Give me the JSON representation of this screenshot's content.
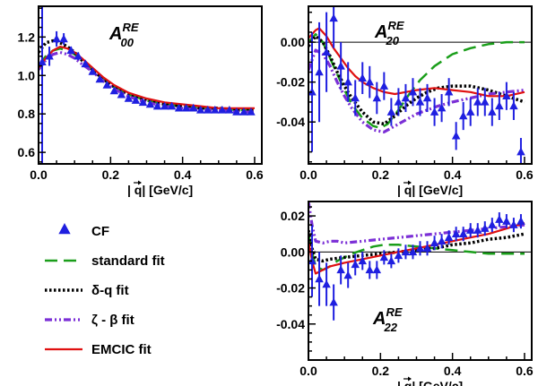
{
  "colors": {
    "cf": "#1f1fe0",
    "standard": "#1a9e1a",
    "delta_q": "#000000",
    "zeta_beta": "#7b2fd6",
    "emcic": "#e01010"
  },
  "legend": {
    "items": [
      {
        "key": "cf",
        "label": "CF",
        "style": "triangle"
      },
      {
        "key": "standard",
        "label": "standard fit",
        "style": "long-dash"
      },
      {
        "key": "delta_q",
        "label": "δ-q fit",
        "style": "dotted"
      },
      {
        "key": "zeta_beta",
        "label": "ζ - β fit",
        "style": "dash-dot"
      },
      {
        "key": "emcic",
        "label": "EMCIC fit",
        "style": "solid"
      }
    ]
  },
  "chart_data": [
    {
      "type": "line",
      "title_main": "A",
      "title_sup": "RE",
      "title_sub": "00",
      "xlabel": "|q| [GeV/c]",
      "xlim": [
        0,
        0.62
      ],
      "ylim": [
        0.54,
        1.36
      ],
      "xticks": [
        0.0,
        0.2,
        0.4,
        0.6
      ],
      "xtick_labels": [
        "0.0",
        "0.2",
        "0.4",
        "0.6"
      ],
      "yticks": [
        0.6,
        0.8,
        1.0,
        1.2
      ],
      "ytick_labels": [
        "0.6",
        "0.8",
        "1.0",
        "1.2"
      ],
      "zero_line": false,
      "cf": {
        "x": [
          0.01,
          0.03,
          0.05,
          0.07,
          0.09,
          0.11,
          0.13,
          0.15,
          0.17,
          0.19,
          0.21,
          0.23,
          0.25,
          0.27,
          0.29,
          0.31,
          0.33,
          0.35,
          0.37,
          0.39,
          0.41,
          0.43,
          0.45,
          0.47,
          0.49,
          0.51,
          0.53,
          0.55,
          0.57,
          0.59
        ],
        "y": [
          1.07,
          1.1,
          1.19,
          1.19,
          1.13,
          1.1,
          1.06,
          1.02,
          0.98,
          0.95,
          0.92,
          0.9,
          0.88,
          0.87,
          0.86,
          0.85,
          0.84,
          0.84,
          0.84,
          0.83,
          0.83,
          0.83,
          0.82,
          0.82,
          0.82,
          0.82,
          0.82,
          0.81,
          0.81,
          0.81
        ],
        "err": [
          0.6,
          0.05,
          0.04,
          0.03,
          0.02,
          0.02,
          0.015,
          0.01,
          0.01,
          0.01,
          0.01,
          0.01,
          0.01,
          0.01,
          0.01,
          0.01,
          0.01,
          0.01,
          0.01,
          0.01,
          0.01,
          0.01,
          0.01,
          0.01,
          0.01,
          0.01,
          0.01,
          0.01,
          0.01,
          0.01
        ]
      },
      "series": [
        {
          "key": "standard",
          "x": [
            0,
            0.02,
            0.04,
            0.06,
            0.08,
            0.1,
            0.12,
            0.15,
            0.18,
            0.21,
            0.25,
            0.3,
            0.35,
            0.4,
            0.45,
            0.5,
            0.55,
            0.6
          ],
          "y": [
            1.05,
            1.1,
            1.13,
            1.14,
            1.13,
            1.11,
            1.08,
            1.03,
            0.98,
            0.94,
            0.9,
            0.87,
            0.85,
            0.84,
            0.83,
            0.83,
            0.82,
            0.82
          ]
        },
        {
          "key": "delta_q",
          "x": [
            0,
            0.02,
            0.04,
            0.06,
            0.08,
            0.1,
            0.12,
            0.15,
            0.18,
            0.21,
            0.25,
            0.3,
            0.35,
            0.4,
            0.45,
            0.5,
            0.55,
            0.6
          ],
          "y": [
            1.12,
            1.17,
            1.18,
            1.17,
            1.15,
            1.12,
            1.08,
            1.03,
            0.98,
            0.94,
            0.9,
            0.87,
            0.85,
            0.84,
            0.83,
            0.83,
            0.82,
            0.82
          ]
        },
        {
          "key": "zeta_beta",
          "x": [
            0,
            0.02,
            0.04,
            0.06,
            0.08,
            0.1,
            0.12,
            0.15,
            0.18,
            0.21,
            0.25,
            0.3,
            0.35,
            0.4,
            0.45,
            0.5,
            0.55,
            0.6
          ],
          "y": [
            1.03,
            1.08,
            1.11,
            1.12,
            1.11,
            1.09,
            1.06,
            1.02,
            0.97,
            0.93,
            0.89,
            0.86,
            0.84,
            0.83,
            0.82,
            0.82,
            0.81,
            0.81
          ]
        },
        {
          "key": "emcic",
          "x": [
            0,
            0.02,
            0.04,
            0.06,
            0.08,
            0.1,
            0.12,
            0.15,
            0.18,
            0.21,
            0.25,
            0.3,
            0.35,
            0.4,
            0.45,
            0.5,
            0.55,
            0.6
          ],
          "y": [
            1.04,
            1.09,
            1.13,
            1.15,
            1.14,
            1.12,
            1.09,
            1.04,
            0.99,
            0.95,
            0.91,
            0.88,
            0.86,
            0.85,
            0.84,
            0.83,
            0.83,
            0.83
          ]
        }
      ]
    },
    {
      "type": "line",
      "title_main": "A",
      "title_sup": "RE",
      "title_sub": "20",
      "xlabel": "|q| [GeV/c]",
      "xlim": [
        0,
        0.62
      ],
      "ylim": [
        -0.061,
        0.018
      ],
      "xticks": [
        0.0,
        0.2,
        0.4,
        0.6
      ],
      "xtick_labels": [
        "0.0",
        "0.2",
        "0.4",
        "0.6"
      ],
      "yticks": [
        0.0,
        -0.02,
        -0.04
      ],
      "ytick_labels": [
        "0.00",
        "-0.02",
        "-0.04"
      ],
      "zero_line": true,
      "cf": {
        "x": [
          0.01,
          0.03,
          0.05,
          0.07,
          0.09,
          0.11,
          0.13,
          0.15,
          0.17,
          0.19,
          0.21,
          0.23,
          0.25,
          0.27,
          0.29,
          0.31,
          0.33,
          0.35,
          0.37,
          0.39,
          0.41,
          0.43,
          0.45,
          0.47,
          0.49,
          0.51,
          0.53,
          0.55,
          0.57,
          0.59
        ],
        "y": [
          -0.025,
          -0.015,
          -0.005,
          0.012,
          -0.012,
          -0.02,
          -0.028,
          -0.018,
          -0.02,
          -0.028,
          -0.022,
          -0.035,
          -0.03,
          -0.028,
          -0.025,
          -0.03,
          -0.028,
          -0.035,
          -0.033,
          -0.025,
          -0.047,
          -0.037,
          -0.035,
          -0.03,
          -0.03,
          -0.035,
          -0.032,
          -0.027,
          -0.032,
          -0.055
        ],
        "err": [
          0.03,
          0.025,
          0.02,
          0.015,
          0.012,
          0.01,
          0.009,
          0.008,
          0.008,
          0.008,
          0.007,
          0.007,
          0.007,
          0.007,
          0.007,
          0.007,
          0.007,
          0.007,
          0.007,
          0.007,
          0.007,
          0.007,
          0.007,
          0.007,
          0.007,
          0.007,
          0.007,
          0.007,
          0.007,
          0.007
        ]
      },
      "series": [
        {
          "key": "standard",
          "x": [
            0,
            0.02,
            0.04,
            0.06,
            0.08,
            0.1,
            0.12,
            0.15,
            0.18,
            0.2,
            0.22,
            0.25,
            0.28,
            0.31,
            0.35,
            0.4,
            0.45,
            0.5,
            0.55,
            0.6
          ],
          "y": [
            0.0,
            0.004,
            0.0,
            -0.008,
            -0.016,
            -0.024,
            -0.031,
            -0.038,
            -0.042,
            -0.043,
            -0.041,
            -0.034,
            -0.026,
            -0.019,
            -0.012,
            -0.006,
            -0.003,
            -0.001,
            0.0,
            0.0
          ]
        },
        {
          "key": "delta_q",
          "x": [
            0,
            0.02,
            0.04,
            0.06,
            0.08,
            0.1,
            0.12,
            0.15,
            0.18,
            0.21,
            0.24,
            0.27,
            0.3,
            0.33,
            0.36,
            0.4,
            0.45,
            0.5,
            0.55,
            0.6
          ],
          "y": [
            -0.002,
            0.003,
            0.0,
            -0.007,
            -0.015,
            -0.022,
            -0.028,
            -0.035,
            -0.04,
            -0.041,
            -0.037,
            -0.032,
            -0.028,
            -0.025,
            -0.023,
            -0.022,
            -0.022,
            -0.024,
            -0.027,
            -0.03
          ]
        },
        {
          "key": "zeta_beta",
          "x": [
            0,
            0.02,
            0.04,
            0.06,
            0.08,
            0.1,
            0.12,
            0.15,
            0.18,
            0.21,
            0.24,
            0.27,
            0.3,
            0.33,
            0.36,
            0.4,
            0.45,
            0.5,
            0.55,
            0.6
          ],
          "y": [
            -0.014,
            -0.004,
            -0.006,
            -0.012,
            -0.02,
            -0.027,
            -0.033,
            -0.04,
            -0.044,
            -0.045,
            -0.042,
            -0.039,
            -0.036,
            -0.034,
            -0.032,
            -0.03,
            -0.028,
            -0.026,
            -0.025,
            -0.024
          ]
        },
        {
          "key": "emcic",
          "x": [
            0,
            0.02,
            0.03,
            0.05,
            0.07,
            0.09,
            0.11,
            0.13,
            0.15,
            0.18,
            0.21,
            0.24,
            0.27,
            0.3,
            0.35,
            0.4,
            0.45,
            0.5,
            0.55,
            0.6
          ],
          "y": [
            0.002,
            0.006,
            0.007,
            0.003,
            -0.003,
            -0.008,
            -0.013,
            -0.017,
            -0.02,
            -0.023,
            -0.025,
            -0.026,
            -0.025,
            -0.024,
            -0.023,
            -0.024,
            -0.025,
            -0.027,
            -0.027,
            -0.025
          ]
        }
      ]
    },
    {
      "type": "line",
      "title_main": "A",
      "title_sup": "RE",
      "title_sub": "22",
      "xlabel": "|q| [GeV/c]",
      "xlim": [
        0,
        0.62
      ],
      "ylim": [
        -0.06,
        0.028
      ],
      "xticks": [
        0.0,
        0.2,
        0.4,
        0.6
      ],
      "xtick_labels": [
        "0.0",
        "0.2",
        "0.4",
        "0.6"
      ],
      "yticks": [
        0.02,
        0.0,
        -0.02,
        -0.04
      ],
      "ytick_labels": [
        "0.02",
        "0.00",
        "-0.02",
        "-0.04"
      ],
      "zero_line": true,
      "cf": {
        "x": [
          0.01,
          0.03,
          0.05,
          0.07,
          0.09,
          0.11,
          0.13,
          0.15,
          0.17,
          0.19,
          0.21,
          0.23,
          0.25,
          0.27,
          0.29,
          0.31,
          0.33,
          0.35,
          0.37,
          0.39,
          0.41,
          0.43,
          0.45,
          0.47,
          0.49,
          0.51,
          0.53,
          0.55,
          0.57,
          0.59
        ],
        "y": [
          -0.005,
          -0.015,
          -0.018,
          -0.028,
          -0.01,
          -0.013,
          -0.007,
          -0.005,
          -0.01,
          -0.01,
          -0.003,
          -0.005,
          -0.002,
          0.0,
          0.0,
          0.002,
          0.002,
          0.005,
          0.006,
          0.008,
          0.01,
          0.01,
          0.012,
          0.012,
          0.013,
          0.015,
          0.018,
          0.017,
          0.015,
          0.017
        ],
        "err": [
          0.02,
          0.015,
          0.012,
          0.01,
          0.008,
          0.007,
          0.006,
          0.005,
          0.005,
          0.005,
          0.004,
          0.004,
          0.004,
          0.004,
          0.004,
          0.004,
          0.004,
          0.004,
          0.004,
          0.004,
          0.004,
          0.004,
          0.004,
          0.004,
          0.004,
          0.004,
          0.004,
          0.004,
          0.004,
          0.004
        ]
      },
      "series": [
        {
          "key": "standard",
          "x": [
            0,
            0.01,
            0.02,
            0.04,
            0.06,
            0.08,
            0.1,
            0.12,
            0.15,
            0.18,
            0.21,
            0.25,
            0.3,
            0.35,
            0.4,
            0.45,
            0.5,
            0.55,
            0.6
          ],
          "y": [
            0.01,
            0.0,
            -0.008,
            -0.01,
            -0.008,
            -0.005,
            -0.003,
            -0.001,
            0.001,
            0.003,
            0.004,
            0.004,
            0.003,
            0.002,
            0.001,
            0.0,
            -0.001,
            -0.001,
            -0.001
          ]
        },
        {
          "key": "delta_q",
          "x": [
            0,
            0.01,
            0.02,
            0.04,
            0.06,
            0.1,
            0.15,
            0.2,
            0.25,
            0.3,
            0.35,
            0.4,
            0.45,
            0.5,
            0.55,
            0.6
          ],
          "y": [
            0.012,
            0.002,
            -0.004,
            -0.005,
            -0.004,
            -0.003,
            -0.002,
            -0.001,
            0.0,
            0.001,
            0.002,
            0.004,
            0.005,
            0.007,
            0.008,
            0.01
          ]
        },
        {
          "key": "zeta_beta",
          "x": [
            0,
            0.01,
            0.02,
            0.04,
            0.06,
            0.08,
            0.1,
            0.15,
            0.2,
            0.25,
            0.3,
            0.35,
            0.4,
            0.45,
            0.5,
            0.55,
            0.6
          ],
          "y": [
            0.028,
            0.015,
            0.006,
            0.005,
            0.006,
            0.006,
            0.005,
            0.006,
            0.007,
            0.008,
            0.009,
            0.01,
            0.011,
            0.012,
            0.013,
            0.014,
            0.015
          ]
        },
        {
          "key": "emcic",
          "x": [
            0,
            0.01,
            0.02,
            0.04,
            0.06,
            0.1,
            0.15,
            0.2,
            0.25,
            0.3,
            0.35,
            0.4,
            0.45,
            0.5,
            0.55,
            0.6
          ],
          "y": [
            0.006,
            -0.005,
            -0.012,
            -0.01,
            -0.008,
            -0.006,
            -0.004,
            -0.002,
            0.0,
            0.002,
            0.004,
            0.006,
            0.008,
            0.01,
            0.013,
            0.016
          ]
        }
      ]
    }
  ]
}
